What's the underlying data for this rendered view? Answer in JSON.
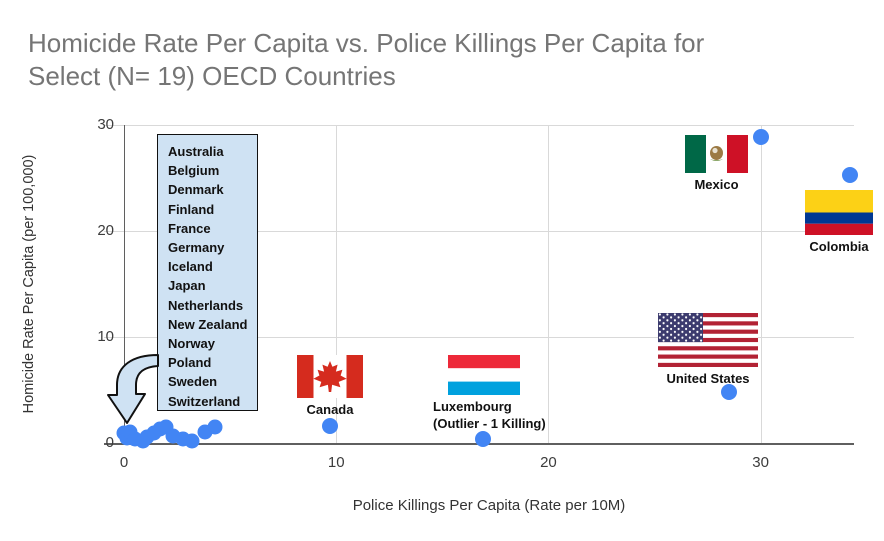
{
  "title": {
    "lines": [
      "Homicide Rate Per Capita vs. Police Killings Per Capita for",
      "Select (N= 19) OECD Countries"
    ]
  },
  "colors": {
    "point": "#4285f4",
    "gridline": "#d9d9d9",
    "axis_line": "#5f5f5f",
    "title_text": "#757575",
    "annotation_box_fill": "#cfe2f3"
  },
  "chart_data": {
    "type": "scatter",
    "title": "Homicide Rate Per Capita vs. Police Killings Per Capita for Select (N= 19) OECD Countries",
    "xlabel": "Police Killings Per Capita (Rate per 10M)",
    "ylabel": "Homicide Rate Per Capita (per 100,000)",
    "xlim": [
      0,
      34.4
    ],
    "ylim": [
      0,
      30
    ],
    "xticks": [
      0,
      10,
      20,
      30
    ],
    "yticks": [
      0,
      10,
      20,
      30
    ],
    "grid": true,
    "legend_position": "none",
    "labeled_points": [
      {
        "label": "Canada",
        "x": 9.7,
        "y": 1.6
      },
      {
        "label": "Luxembourg (Outlier - 1 Killing)",
        "x": 16.9,
        "y": 0.4
      },
      {
        "label": "United States",
        "x": 28.5,
        "y": 4.8
      },
      {
        "label": "Mexico",
        "x": 30.0,
        "y": 28.9
      },
      {
        "label": "Colombia",
        "x": 34.2,
        "y": 25.3
      }
    ],
    "cluster_points": [
      [
        0.0,
        0.9
      ],
      [
        0.15,
        0.5
      ],
      [
        0.3,
        1.0
      ],
      [
        0.5,
        0.4
      ],
      [
        0.9,
        0.2
      ],
      [
        1.1,
        0.6
      ],
      [
        1.4,
        0.9
      ],
      [
        1.7,
        1.3
      ],
      [
        2.0,
        1.5
      ],
      [
        2.3,
        0.7
      ],
      [
        2.8,
        0.4
      ],
      [
        3.2,
        0.2
      ],
      [
        3.8,
        1.0
      ],
      [
        4.3,
        1.5
      ]
    ],
    "cluster_annotation": {
      "countries": [
        "Australia",
        "Belgium",
        "Denmark",
        "Finland",
        "France",
        "Germany",
        "Iceland",
        "Japan",
        "Netherlands",
        "New Zealand",
        "Norway",
        "Poland",
        "Sweden",
        "Switzerland"
      ]
    }
  },
  "flags": {
    "canada": {
      "label": "Canada"
    },
    "luxembourg": {
      "label_line1": "Luxembourg",
      "label_line2": "(Outlier - 1 Killing)"
    },
    "united_states": {
      "label": "United States"
    },
    "mexico": {
      "label": "Mexico"
    },
    "colombia": {
      "label": "Colombia"
    }
  }
}
